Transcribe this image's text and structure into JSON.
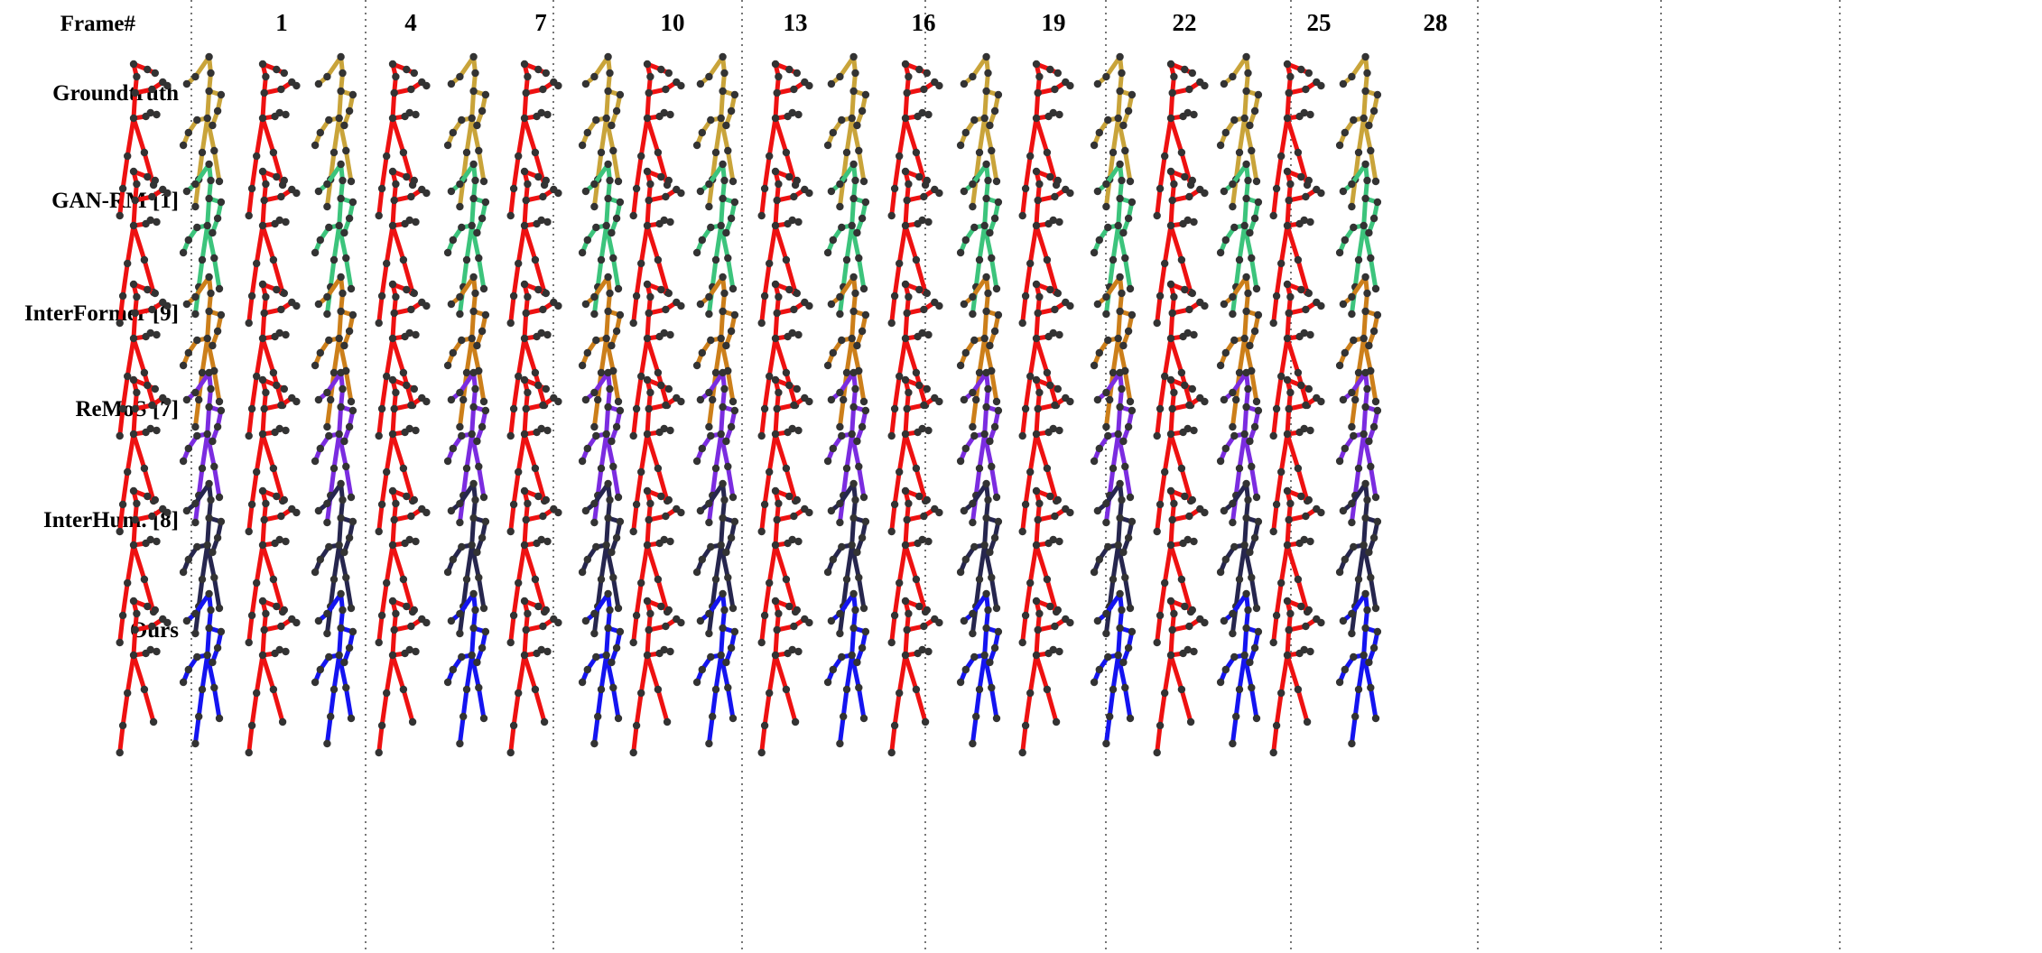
{
  "header": {
    "frame_label": "Frame#",
    "frames": [
      "1",
      "4",
      "7",
      "10",
      "13",
      "16",
      "19",
      "22",
      "25",
      "28"
    ]
  },
  "rows": [
    {
      "label": "Groundtruth",
      "color": "#C9A43A"
    },
    {
      "label": "GAN-RM [1]",
      "color": "#3CC47C"
    },
    {
      "label": "InterFormer [9]",
      "color": "#CC7F1A"
    },
    {
      "label": "ReMoS [7]",
      "color": "#7B2CE0"
    },
    {
      "label": "InterHum. [8]",
      "color": "#26264E"
    },
    {
      "label": "Ours",
      "color": "#1414F0"
    }
  ],
  "reference_color": "#EE1111",
  "joint_color": "#333333"
}
